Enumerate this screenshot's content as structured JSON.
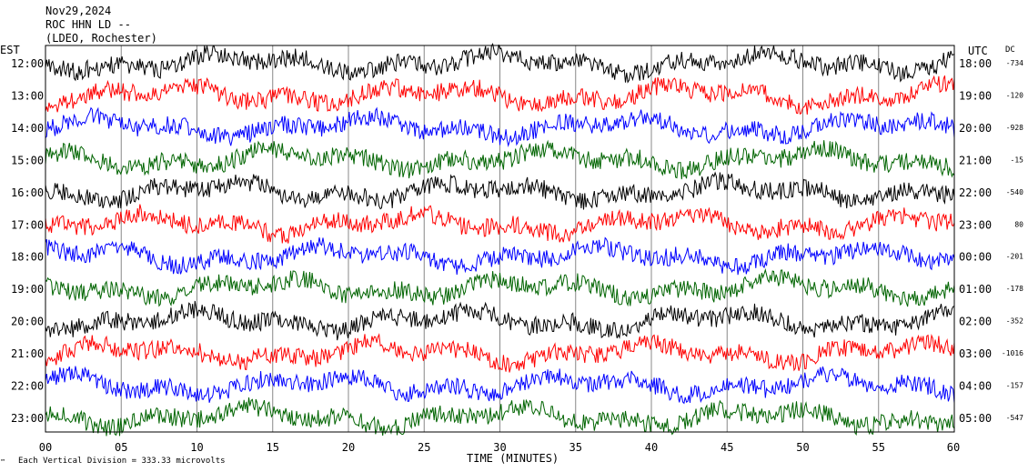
{
  "header": {
    "date": "Nov29,2024",
    "station": "ROC HHN LD --",
    "network": "(LDEO, Rochester)"
  },
  "left_axis_title": "EST",
  "right_axis_title": "UTC",
  "dc_title": "DC",
  "footer": {
    "mark": "™",
    "scale_note": "Each Vertical Division =  333.33 microvolts"
  },
  "chart_data": {
    "type": "line",
    "title": "",
    "xlabel": "TIME (MINUTES)",
    "ylabel": "",
    "xlim": [
      0,
      60
    ],
    "x_ticks": [
      "00",
      "05",
      "10",
      "15",
      "20",
      "25",
      "30",
      "35",
      "40",
      "45",
      "50",
      "55",
      "60"
    ],
    "grid": true,
    "trace_colors": [
      "#000000",
      "#ff0000",
      "#0000ff",
      "#006400"
    ],
    "series": [
      {
        "est": "12:00",
        "utc": "18:00",
        "dc": "-734",
        "color": "#000000"
      },
      {
        "est": "13:00",
        "utc": "19:00",
        "dc": "-120",
        "color": "#ff0000"
      },
      {
        "est": "14:00",
        "utc": "20:00",
        "dc": "-928",
        "color": "#0000ff"
      },
      {
        "est": "15:00",
        "utc": "21:00",
        "dc": "-15",
        "color": "#006400"
      },
      {
        "est": "16:00",
        "utc": "22:00",
        "dc": "-540",
        "color": "#000000"
      },
      {
        "est": "17:00",
        "utc": "23:00",
        "dc": "80",
        "color": "#ff0000"
      },
      {
        "est": "18:00",
        "utc": "00:00",
        "dc": "-201",
        "color": "#0000ff"
      },
      {
        "est": "19:00",
        "utc": "01:00",
        "dc": "-178",
        "color": "#006400"
      },
      {
        "est": "20:00",
        "utc": "02:00",
        "dc": "-352",
        "color": "#000000"
      },
      {
        "est": "21:00",
        "utc": "03:00",
        "dc": "-1016",
        "color": "#ff0000"
      },
      {
        "est": "22:00",
        "utc": "04:00",
        "dc": "-157",
        "color": "#0000ff"
      },
      {
        "est": "23:00",
        "utc": "05:00",
        "dc": "-547",
        "color": "#006400"
      }
    ]
  }
}
